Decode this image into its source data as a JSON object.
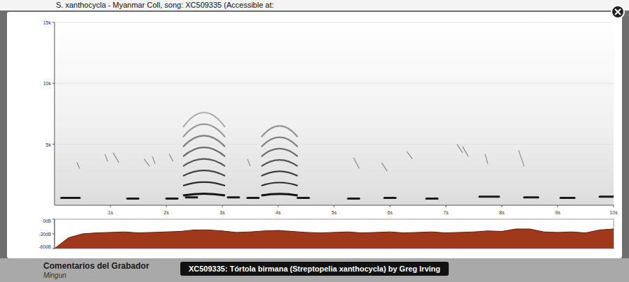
{
  "page": {
    "top_text": "S. xanthocycla - Myanmar Coll, song: XC509335 (Accessible at:",
    "comments_heading": "Comentarios del Grabador",
    "comments_text": "Mingun",
    "caption": "XC509335: Tórtola birmana (Streptopelia xanthocycla) by Greg Irving"
  },
  "chart_data": [
    {
      "type": "spectrogram",
      "color": "#1a1a1a",
      "grid": true,
      "xlim": [
        0,
        10
      ],
      "xticks": [
        {
          "value": 1,
          "label": "1s"
        },
        {
          "value": 2,
          "label": "2s"
        },
        {
          "value": 3,
          "label": "3s"
        },
        {
          "value": 4,
          "label": "4s"
        },
        {
          "value": 5,
          "label": "5s"
        },
        {
          "value": 6,
          "label": "6s"
        },
        {
          "value": 7,
          "label": "7s"
        },
        {
          "value": 8,
          "label": "8s"
        },
        {
          "value": 9,
          "label": "9s"
        },
        {
          "value": 10,
          "label": "10s"
        }
      ],
      "ylim": [
        0,
        15000
      ],
      "yticks": [
        {
          "value": 5000,
          "label": "5k"
        },
        {
          "value": 10000,
          "label": "10k"
        },
        {
          "value": 15000,
          "label": "15k"
        }
      ],
      "notes": [
        {
          "start": 0.12,
          "end": 0.45,
          "freq": 600
        },
        {
          "start": 1.3,
          "end": 1.5,
          "freq": 550
        },
        {
          "start": 2.0,
          "end": 2.2,
          "freq": 550
        },
        {
          "start": 2.35,
          "end": 2.55,
          "freq": 650
        },
        {
          "start": 3.1,
          "end": 3.3,
          "freq": 650
        },
        {
          "start": 3.45,
          "end": 3.65,
          "freq": 600
        },
        {
          "start": 4.35,
          "end": 4.55,
          "freq": 600
        },
        {
          "start": 5.25,
          "end": 5.45,
          "freq": 550
        },
        {
          "start": 5.9,
          "end": 6.1,
          "freq": 600
        },
        {
          "start": 6.65,
          "end": 6.85,
          "freq": 550
        },
        {
          "start": 7.6,
          "end": 7.95,
          "freq": 700
        },
        {
          "start": 8.4,
          "end": 8.65,
          "freq": 650
        },
        {
          "start": 9.05,
          "end": 9.3,
          "freq": 600
        },
        {
          "start": 9.75,
          "end": 10.0,
          "freq": 700
        }
      ],
      "calls": [
        {
          "start": 2.3,
          "end": 3.05,
          "f0_start": 800,
          "f0_peak": 950,
          "harmonics": 8
        },
        {
          "start": 3.7,
          "end": 4.35,
          "f0_start": 800,
          "f0_peak": 930,
          "harmonics": 7
        }
      ],
      "chirps": [
        {
          "start": 0.4,
          "end": 0.45,
          "f_start": 3500,
          "f_end": 3000
        },
        {
          "start": 0.9,
          "end": 0.95,
          "f_start": 4200,
          "f_end": 3600
        },
        {
          "start": 1.05,
          "end": 1.15,
          "f_start": 4300,
          "f_end": 3500
        },
        {
          "start": 1.6,
          "end": 1.7,
          "f_start": 3800,
          "f_end": 3200
        },
        {
          "start": 1.75,
          "end": 1.8,
          "f_start": 4000,
          "f_end": 3400
        },
        {
          "start": 2.05,
          "end": 2.12,
          "f_start": 4200,
          "f_end": 3600
        },
        {
          "start": 3.45,
          "end": 3.5,
          "f_start": 3800,
          "f_end": 3200
        },
        {
          "start": 5.35,
          "end": 5.45,
          "f_start": 3900,
          "f_end": 3000
        },
        {
          "start": 5.85,
          "end": 5.95,
          "f_start": 3500,
          "f_end": 2800
        },
        {
          "start": 6.3,
          "end": 6.4,
          "f_start": 4400,
          "f_end": 3800
        },
        {
          "start": 7.2,
          "end": 7.3,
          "f_start": 5000,
          "f_end": 4300
        },
        {
          "start": 7.3,
          "end": 7.4,
          "f_start": 4800,
          "f_end": 4000
        },
        {
          "start": 7.7,
          "end": 7.75,
          "f_start": 4200,
          "f_end": 3400
        },
        {
          "start": 8.3,
          "end": 8.4,
          "f_start": 4500,
          "f_end": 3200
        }
      ]
    },
    {
      "type": "area",
      "color": "#a0391c",
      "tick_labels": "y",
      "xlim": [
        0,
        10
      ],
      "ylim": [
        -60,
        0
      ],
      "yticks": [
        {
          "value": -60,
          "label": "-60dB"
        },
        {
          "value": -30,
          "label": "-30dB"
        },
        {
          "value": 0,
          "label": "0dB"
        }
      ],
      "x": [
        0,
        0.25,
        0.5,
        0.75,
        1,
        1.25,
        1.5,
        1.75,
        2,
        2.25,
        2.5,
        2.75,
        3,
        3.25,
        3.5,
        3.75,
        4,
        4.25,
        4.5,
        4.75,
        5,
        5.25,
        5.5,
        5.75,
        6,
        6.25,
        6.5,
        6.75,
        7,
        7.25,
        7.5,
        7.75,
        8,
        8.25,
        8.5,
        8.75,
        9,
        9.25,
        9.5,
        9.75,
        10
      ],
      "values": [
        -60,
        -38,
        -30,
        -28,
        -27,
        -26,
        -28,
        -27,
        -26,
        -25,
        -22,
        -22,
        -24,
        -27,
        -26,
        -24,
        -23,
        -25,
        -27,
        -28,
        -27,
        -26,
        -28,
        -27,
        -26,
        -28,
        -27,
        -26,
        -28,
        -27,
        -26,
        -24,
        -25,
        -20,
        -20,
        -26,
        -27,
        -26,
        -28,
        -22,
        -20
      ]
    }
  ]
}
